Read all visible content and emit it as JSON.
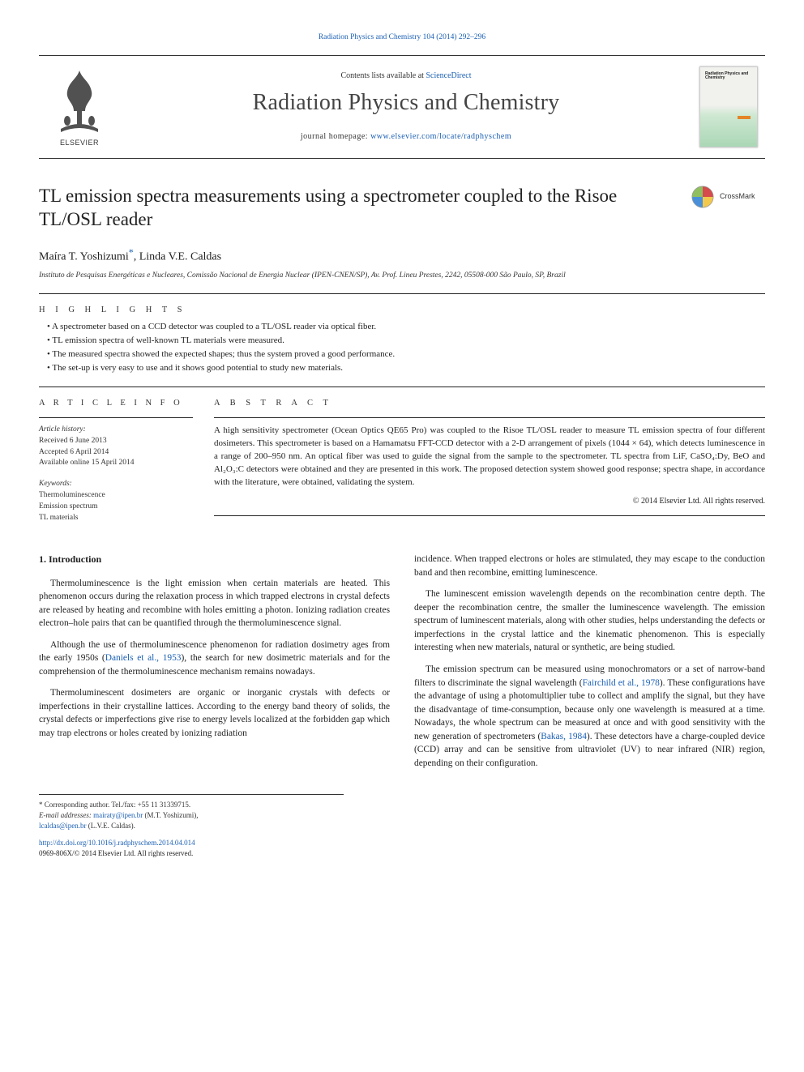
{
  "top_link": "Radiation Physics and Chemistry 104 (2014) 292–296",
  "header": {
    "contents_prefix": "Contents lists available at ",
    "contents_link": "ScienceDirect",
    "journal_title": "Radiation Physics and Chemistry",
    "homepage_prefix": "journal homepage: ",
    "homepage_link": "www.elsevier.com/locate/radphyschem",
    "publisher_name": "ELSEVIER",
    "cover_label": "Radiation Physics and Chemistry"
  },
  "crossmark_label": "CrossMark",
  "article": {
    "title": "TL emission spectra measurements using a spectrometer coupled to the Risoe TL/OSL reader",
    "authors_html_name1": "Maíra T. Yoshizumi",
    "authors_star": "*",
    "authors_sep": ", ",
    "authors_html_name2": "Linda V.E. Caldas",
    "affiliation": "Instituto de Pesquisas Energéticas e Nucleares, Comissão Nacional de Energia Nuclear (IPEN-CNEN/SP), Av. Prof. Lineu Prestes, 2242, 05508-000 São Paulo, SP, Brazil"
  },
  "highlights": {
    "label": "H I G H L I G H T S",
    "items": [
      "A spectrometer based on a CCD detector was coupled to a TL/OSL reader via optical fiber.",
      "TL emission spectra of well-known TL materials were measured.",
      "The measured spectra showed the expected shapes; thus the system proved a good performance.",
      "The set-up is very easy to use and it shows good potential to study new materials."
    ]
  },
  "info": {
    "label": "A R T I C L E   I N F O",
    "history_label": "Article history:",
    "history": [
      "Received 6 June 2013",
      "Accepted 6 April 2014",
      "Available online 15 April 2014"
    ],
    "keywords_label": "Keywords:",
    "keywords": [
      "Thermoluminescence",
      "Emission spectrum",
      "TL materials"
    ]
  },
  "abstract": {
    "label": "A B S T R A C T",
    "text": "A high sensitivity spectrometer (Ocean Optics QE65 Pro) was coupled to the Risoe TL/OSL reader to measure TL emission spectra of four different dosimeters. This spectrometer is based on a Hamamatsu FFT-CCD detector with a 2-D arrangement of pixels (1044 × 64), which detects luminescence in a range of 200–950 nm. An optical fiber was used to guide the signal from the sample to the spectrometer. TL spectra from LiF, CaSO₄:Dy, BeO and Al₂O₃:C detectors were obtained and they are presented in this work. The proposed detection system showed good response; spectra shape, in accordance with the literature, were obtained, validating the system.",
    "copyright": "© 2014 Elsevier Ltd. All rights reserved."
  },
  "body": {
    "heading": "1. Introduction",
    "paras": [
      "Thermoluminescence is the light emission when certain materials are heated. This phenomenon occurs during the relaxation process in which trapped electrons in crystal defects are released by heating and recombine with holes emitting a photon. Ionizing radiation creates electron–hole pairs that can be quantified through the thermoluminescence signal.",
      "Although the use of thermoluminescence phenomenon for radiation dosimetry ages from the early 1950s (Daniels et al., 1953), the search for new dosimetric materials and for the comprehension of the thermoluminescence mechanism remains nowadays.",
      "Thermoluminescent dosimeters are organic or inorganic crystals with defects or imperfections in their crystalline lattices. According to the energy band theory of solids, the crystal defects or imperfections give rise to energy levels localized at the forbidden gap which may trap electrons or holes created by ionizing radiation",
      "incidence. When trapped electrons or holes are stimulated, they may escape to the conduction band and then recombine, emitting luminescence.",
      "The luminescent emission wavelength depends on the recombination centre depth. The deeper the recombination centre, the smaller the luminescence wavelength. The emission spectrum of luminescent materials, along with other studies, helps understanding the defects or imperfections in the crystal lattice and the kinematic phenomenon. This is especially interesting when new materials, natural or synthetic, are being studied.",
      "The emission spectrum can be measured using monochromators or a set of narrow-band filters to discriminate the signal wavelength (Fairchild et al., 1978). These configurations have the advantage of using a photomultiplier tube to collect and amplify the signal, but they have the disadvantage of time-consumption, because only one wavelength is measured at a time. Nowadays, the whole spectrum can be measured at once and with good sensitivity with the new generation of spectrometers (Bakas, 1984). These detectors have a charge-coupled device (CCD) array and can be sensitive from ultraviolet (UV) to near infrared (NIR) region, depending on their configuration."
    ],
    "ref_links": [
      "Daniels et al., 1953",
      "Fairchild et al., 1978",
      "Bakas, 1984"
    ]
  },
  "footnotes": {
    "corr": "* Corresponding author. Tel./fax: +55 11 31339715.",
    "email_label": "E-mail addresses: ",
    "email1": "mairaty@ipen.br",
    "email1_who": " (M.T. Yoshizumi),",
    "email2": "lcaldas@ipen.br",
    "email2_who": " (L.V.E. Caldas)."
  },
  "doi": {
    "link": "http://dx.doi.org/10.1016/j.radphyschem.2014.04.014",
    "issn": "0969-806X/© 2014 Elsevier Ltd. All rights reserved."
  },
  "colors": {
    "link": "#1a5fb4",
    "text": "#222222",
    "border": "#333333"
  }
}
